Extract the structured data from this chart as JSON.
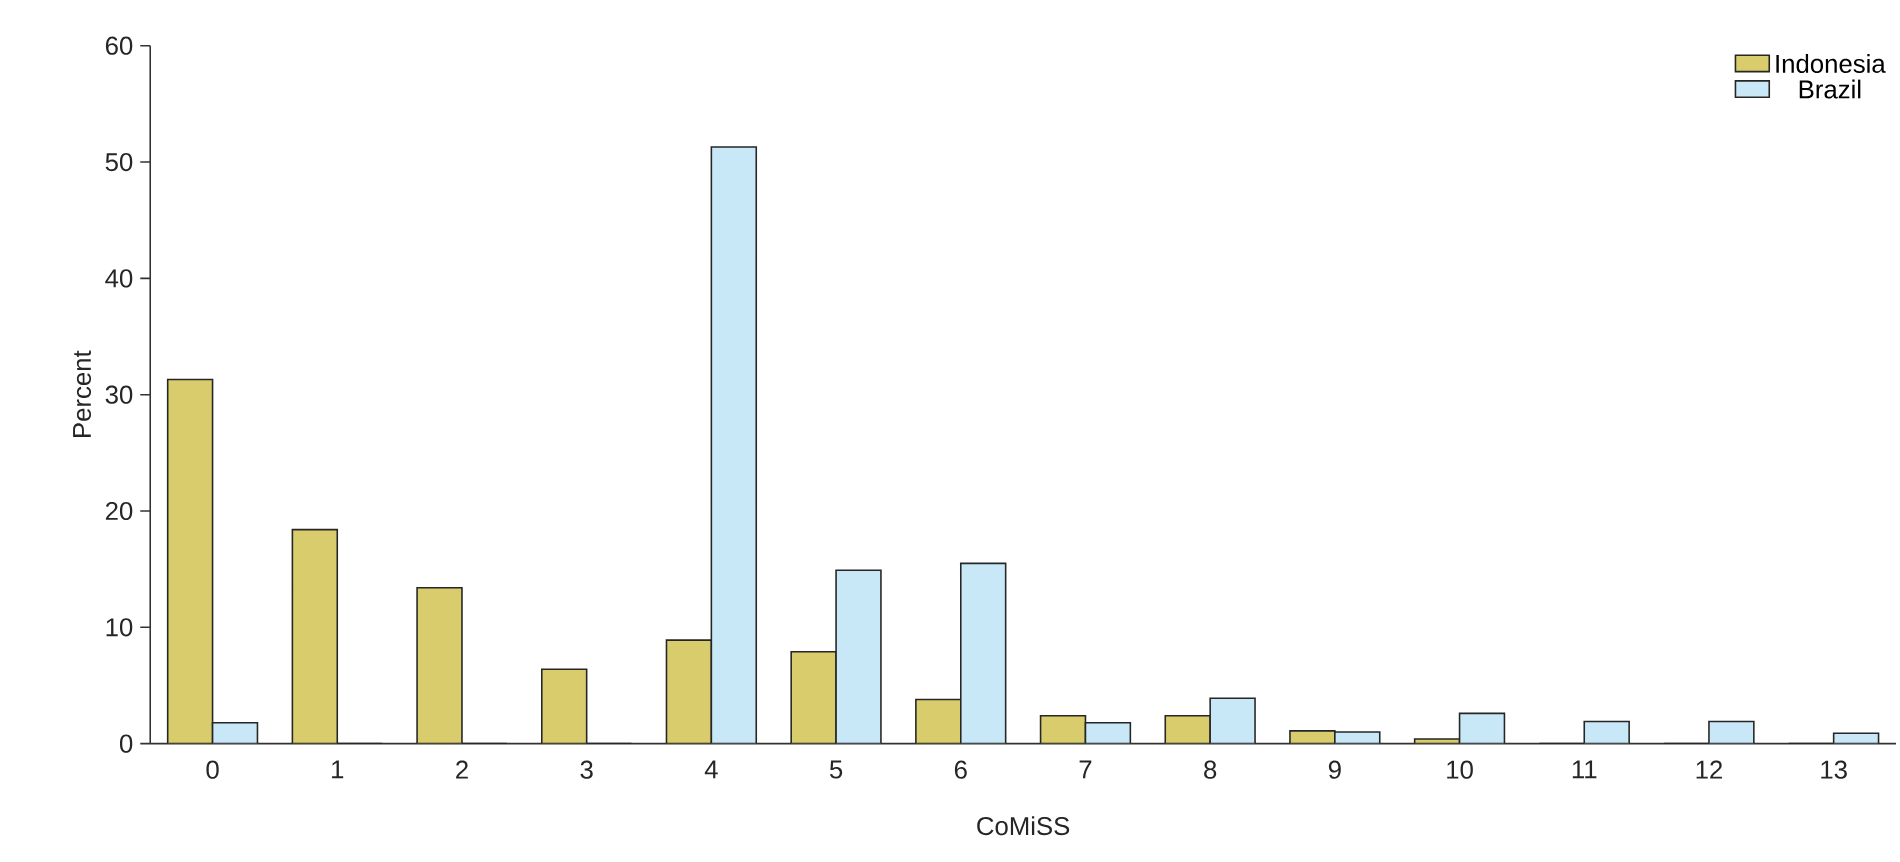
{
  "chart_data": {
    "type": "bar",
    "xlabel": "CoMiSS",
    "ylabel": "Percent",
    "categories": [
      "0",
      "1",
      "2",
      "3",
      "4",
      "5",
      "6",
      "7",
      "8",
      "9",
      "10",
      "11",
      "12",
      "13"
    ],
    "series": [
      {
        "name": "Indonesia",
        "color": "#d8cc6c",
        "values": [
          31.3,
          18.4,
          13.4,
          6.4,
          8.9,
          7.9,
          3.8,
          2.4,
          2.4,
          1.1,
          0.4,
          0,
          0,
          0
        ]
      },
      {
        "name": "Brazil",
        "color": "#c8e8f8",
        "values": [
          1.8,
          0,
          0,
          0,
          51.3,
          14.9,
          15.5,
          1.8,
          3.9,
          1.0,
          2.6,
          1.9,
          1.9,
          0.9
        ]
      }
    ],
    "ylim": [
      0,
      60
    ],
    "yticks": [
      0,
      10,
      20,
      30,
      40,
      50,
      60
    ],
    "legend": "top right",
    "grid": false
  }
}
